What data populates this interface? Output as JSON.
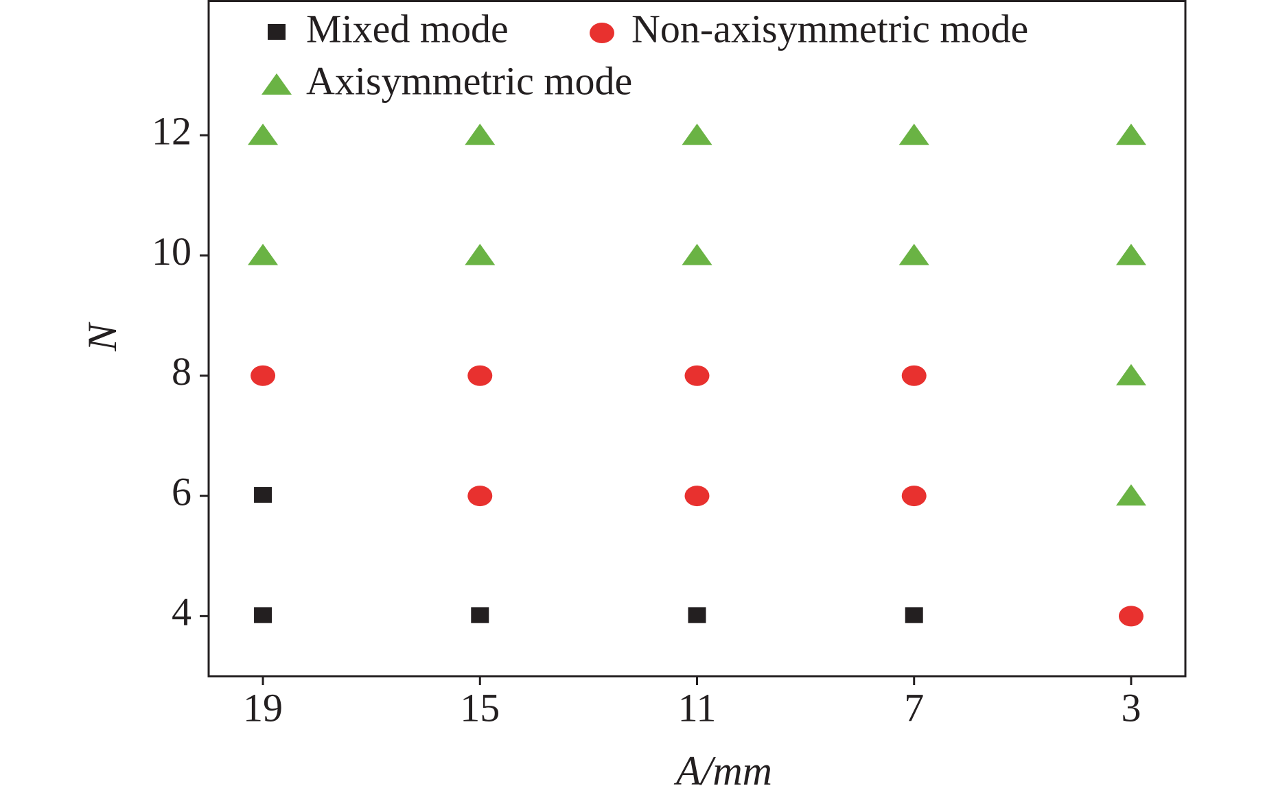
{
  "chart_data": {
    "type": "scatter",
    "x_label": "A/mm",
    "y_label": "N",
    "xlim": [
      20,
      2
    ],
    "ylim": [
      3,
      14.25
    ],
    "xticks": [
      19,
      15,
      11,
      7,
      3
    ],
    "yticks": [
      4,
      6,
      8,
      10,
      12
    ],
    "series": [
      {
        "name": "Mixed mode",
        "color": "#231f20",
        "marker": "square",
        "x": [
          19,
          19,
          15,
          11,
          7
        ],
        "y": [
          4,
          6,
          4,
          4,
          4
        ]
      },
      {
        "name": "Non-axisymmetric mode",
        "color": "#e8312f",
        "marker": "circle",
        "x": [
          19,
          15,
          15,
          11,
          11,
          7,
          7,
          3
        ],
        "y": [
          8,
          6,
          8,
          6,
          8,
          6,
          8,
          4
        ]
      },
      {
        "name": "Axisymmetric mode",
        "color": "#6ab344",
        "marker": "triangle",
        "x": [
          19,
          19,
          15,
          15,
          11,
          11,
          7,
          7,
          3,
          3,
          3,
          3
        ],
        "y": [
          10,
          12,
          10,
          12,
          10,
          12,
          10,
          12,
          6,
          8,
          10,
          12
        ]
      }
    ]
  }
}
